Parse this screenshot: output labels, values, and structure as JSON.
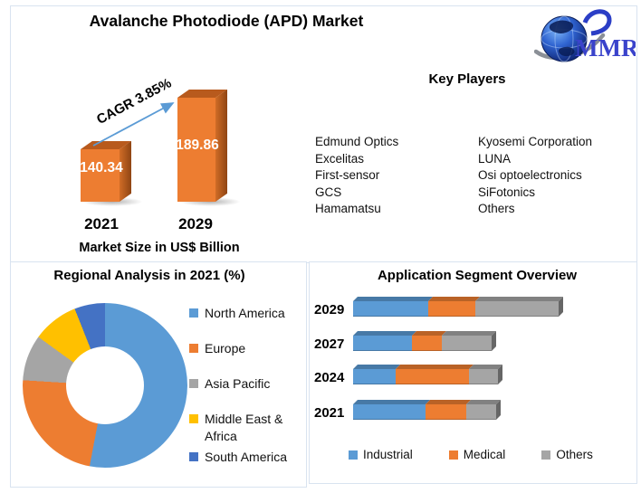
{
  "page": {
    "title": "Avalanche Photodiode (APD) Market",
    "logo_text": "MMR",
    "border_color": "#d9e3f0"
  },
  "key_players": {
    "heading": "Key Players",
    "column1": [
      "Edmund Optics",
      "Excelitas",
      "First-sensor",
      "GCS",
      "Hamamatsu"
    ],
    "column2": [
      "Kyosemi Corporation",
      "LUNA",
      "Osi optoelectronics",
      "SiFotonics",
      "Others"
    ]
  },
  "colors": {
    "bar_orange": "#ED7D31",
    "arrow_blue": "#5B9BD5"
  },
  "chart_data": [
    {
      "type": "bar",
      "title": "Market Size in US$ Billion",
      "categories": [
        "2021",
        "2029"
      ],
      "values": [
        140.34,
        189.86
      ],
      "annotation": "CAGR 3.85%",
      "bar_color": "#ED7D31",
      "value_labels_color": "#ffffff"
    },
    {
      "type": "pie",
      "donut": true,
      "title": "Regional Analysis in 2021 (%)",
      "labels": [
        "North America",
        "Europe",
        "Asia Pacific",
        "Middle East & Africa",
        "South America"
      ],
      "values": [
        53,
        23,
        9,
        9,
        6
      ],
      "colors": [
        "#5B9BD5",
        "#ED7D31",
        "#A5A5A5",
        "#FFC000",
        "#4472C4"
      ],
      "legend_position": "right",
      "start_angle_deg": 0
    },
    {
      "type": "bar",
      "subtype": "stacked-horizontal-3d",
      "title": "Application Segment Overview",
      "categories": [
        "2029",
        "2027",
        "2024",
        "2021"
      ],
      "series": [
        {
          "name": "Industrial",
          "color": "#5B9BD5",
          "values": [
            83,
            65,
            47,
            80
          ]
        },
        {
          "name": "Medical",
          "color": "#ED7D31",
          "values": [
            52,
            33,
            81,
            45
          ]
        },
        {
          "name": "Others",
          "color": "#A5A5A5",
          "values": [
            92,
            55,
            32,
            33
          ]
        }
      ],
      "axis_shown": false,
      "units": "relative width (no axis labels shown)",
      "legend_position": "bottom"
    }
  ]
}
